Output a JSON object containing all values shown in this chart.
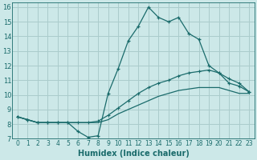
{
  "xlabel": "Humidex (Indice chaleur)",
  "bg_color": "#cce8e8",
  "grid_color": "#aacccc",
  "line_color": "#1a6b6b",
  "xlim": [
    -0.5,
    23.5
  ],
  "ylim": [
    7,
    16.3
  ],
  "x_ticks": [
    0,
    1,
    2,
    3,
    4,
    5,
    6,
    7,
    8,
    9,
    10,
    11,
    12,
    13,
    14,
    15,
    16,
    17,
    18,
    19,
    20,
    21,
    22,
    23
  ],
  "y_ticks": [
    7,
    8,
    9,
    10,
    11,
    12,
    13,
    14,
    15,
    16
  ],
  "line1_x": [
    0,
    1,
    2,
    3,
    4,
    5,
    6,
    7,
    8,
    9,
    10,
    11,
    12,
    13,
    14,
    15,
    16,
    17,
    18,
    19,
    20,
    21,
    22,
    23
  ],
  "line1_y": [
    8.5,
    8.3,
    8.1,
    8.1,
    8.1,
    8.1,
    7.5,
    7.1,
    7.2,
    10.1,
    11.8,
    13.7,
    14.7,
    16.0,
    15.3,
    15.0,
    15.3,
    14.2,
    13.8,
    12.0,
    11.5,
    10.8,
    10.6,
    10.2
  ],
  "line2_x": [
    0,
    1,
    2,
    3,
    4,
    5,
    6,
    7,
    8,
    9,
    10,
    11,
    12,
    13,
    14,
    15,
    16,
    17,
    18,
    19,
    20,
    21,
    22,
    23
  ],
  "line2_y": [
    8.5,
    8.3,
    8.1,
    8.1,
    8.1,
    8.1,
    8.1,
    8.1,
    8.2,
    8.6,
    9.1,
    9.6,
    10.1,
    10.5,
    10.8,
    11.0,
    11.3,
    11.5,
    11.6,
    11.7,
    11.5,
    11.1,
    10.8,
    10.2
  ],
  "line3_x": [
    0,
    1,
    2,
    3,
    4,
    5,
    6,
    7,
    8,
    9,
    10,
    11,
    12,
    13,
    14,
    15,
    16,
    17,
    18,
    19,
    20,
    21,
    22,
    23
  ],
  "line3_y": [
    8.5,
    8.3,
    8.1,
    8.1,
    8.1,
    8.1,
    8.1,
    8.1,
    8.1,
    8.3,
    8.7,
    9.0,
    9.3,
    9.6,
    9.9,
    10.1,
    10.3,
    10.4,
    10.5,
    10.5,
    10.5,
    10.3,
    10.1,
    10.1
  ],
  "xlabel_fontsize": 7,
  "tick_fontsize": 5.5
}
